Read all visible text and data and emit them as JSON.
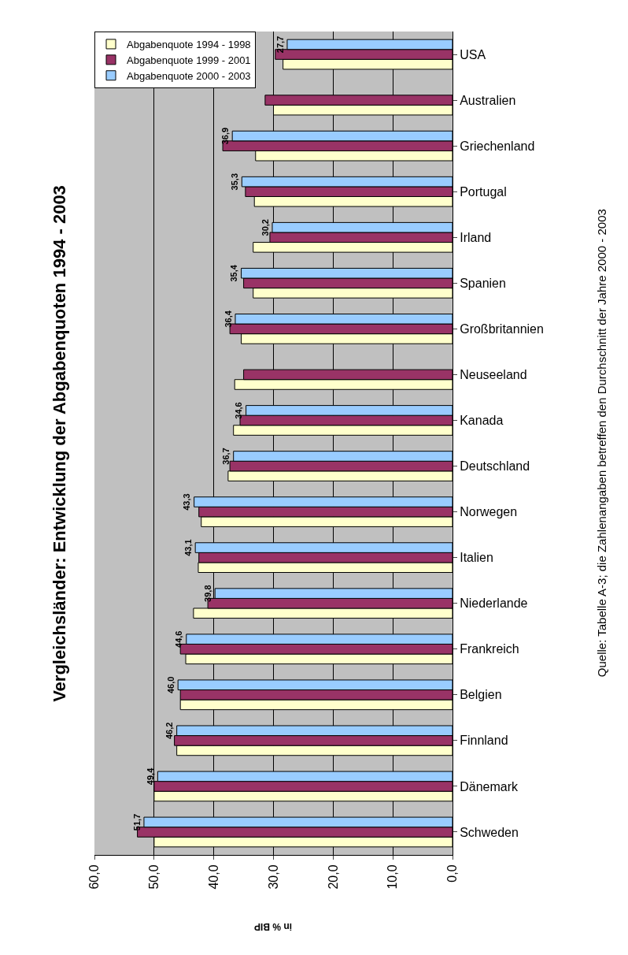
{
  "chart_data": {
    "type": "bar",
    "orientation": "horizontal",
    "title": "Vergleichsländer: Entwicklung der Abgabenquoten 1994 - 2003",
    "xlabel": "in % BIP",
    "annotations": [
      "Quelle: Tabelle A-3; die Zahlenangaben betreffen den Durchschnitt der Jahre 2000 - 2003"
    ],
    "categories": [
      "USA",
      "Australien",
      "Griechenland",
      "Portugal",
      "Irland",
      "Spanien",
      "Großbritannien",
      "Neuseeland",
      "Kanada",
      "Deutschland",
      "Norwegen",
      "Italien",
      "Niederlande",
      "Frankreich",
      "Belgien",
      "Finnland",
      "Dänemark",
      "Schweden"
    ],
    "series": [
      {
        "name": "Abgabenquote 1994 - 1998",
        "color": "#ffffcc",
        "values": [
          28.4,
          30.0,
          33.0,
          33.2,
          33.4,
          33.4,
          35.4,
          36.5,
          36.7,
          37.6,
          42.1,
          42.6,
          43.4,
          44.7,
          45.6,
          46.2,
          50.0,
          50.0
        ]
      },
      {
        "name": "Abgabenquote 1999 - 2001",
        "color": "#993366",
        "values": [
          29.7,
          31.4,
          38.5,
          34.7,
          30.6,
          35.0,
          37.3,
          35.0,
          35.6,
          37.3,
          42.5,
          42.5,
          41.0,
          45.6,
          45.6,
          46.6,
          50.0,
          52.8
        ]
      },
      {
        "name": "Abgabenquote 2000 - 2003",
        "color": "#99ccff",
        "values": [
          27.7,
          null,
          36.9,
          35.3,
          30.2,
          35.4,
          36.4,
          null,
          34.6,
          36.7,
          43.3,
          43.1,
          39.8,
          44.6,
          46.0,
          46.2,
          49.4,
          51.7
        ],
        "value_labels": [
          "27,7",
          null,
          "36,9",
          "35,3",
          "30,2",
          "35,4",
          "36,4",
          null,
          "34,6",
          "36,7",
          "43,3",
          "43,1",
          "39,8",
          "44,6",
          "46,0",
          "46,2",
          "49,4",
          "51,7"
        ]
      }
    ],
    "xlim": [
      60,
      0
    ],
    "xticks": [
      {
        "value": 60,
        "label": "60,0"
      },
      {
        "value": 50,
        "label": "50,0"
      },
      {
        "value": 40,
        "label": "40,0"
      },
      {
        "value": 30,
        "label": "30,0"
      },
      {
        "value": 20,
        "label": "20,0"
      },
      {
        "value": 10,
        "label": "10,0"
      },
      {
        "value": 0,
        "label": "0,0"
      }
    ],
    "grid": "x",
    "legend": "top left"
  }
}
